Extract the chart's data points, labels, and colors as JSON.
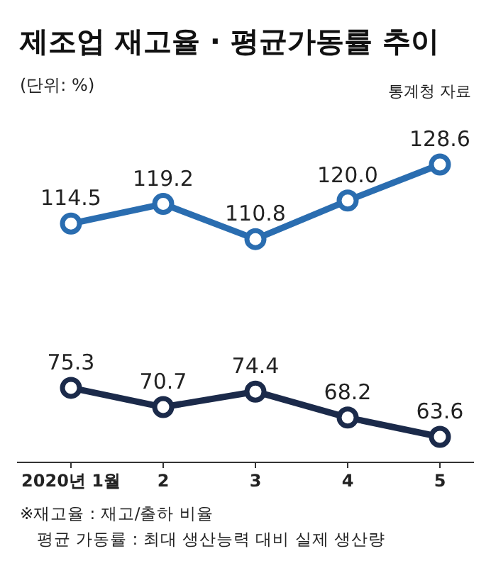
{
  "chart_data": {
    "type": "line",
    "title": "제조업 재고율 · 평균가동률 추이",
    "categories": [
      "2020년 1월",
      "2",
      "3",
      "4",
      "5"
    ],
    "series": [
      {
        "color": "#2a6db0",
        "values": [
          114.5,
          119.2,
          110.8,
          120.0,
          128.6
        ],
        "value_labels": [
          "114.5",
          "119.2",
          "110.8",
          "120.0",
          "128.6"
        ]
      },
      {
        "color": "#1b2a4a",
        "values": [
          75.3,
          70.7,
          74.4,
          68.2,
          63.6
        ],
        "value_labels": [
          "75.3",
          "70.7",
          "74.4",
          "68.2",
          "63.6"
        ]
      }
    ],
    "marker": "circle",
    "line_style": "solid",
    "annotations": [
      "(단위: %)",
      "통계청 자료",
      "※재고율 : 재고/출하 비율",
      "평균 가동률 : 최대 생산능력 대비 실제 생산량"
    ]
  }
}
